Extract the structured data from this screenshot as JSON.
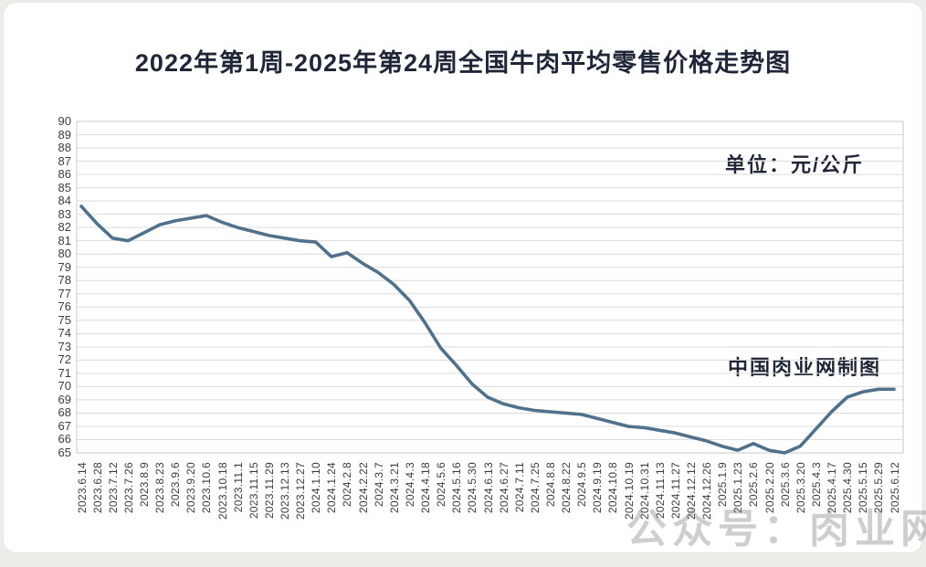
{
  "page": {
    "title": "2022年第1周-2025年第24周全国牛肉平均零售价格走势图",
    "unit_label": "单位：元/公斤",
    "credit_label": "中国肉业网制图",
    "watermark": "公众号：肉业网"
  },
  "colors": {
    "line": "#50718c",
    "grid": "#dcdcdc",
    "plot_border": "#c9c9c9",
    "title_text": "#1f2638",
    "axis_text": "#3c3c3c"
  },
  "chart_data": {
    "type": "line",
    "title": "2022年第1周-2025年第24周全国牛肉平均零售价格走势图",
    "unit": "元/公斤",
    "xlabel": "",
    "ylabel": "",
    "ylim": [
      65,
      90
    ],
    "ytick_step": 1,
    "grid": true,
    "legend": false,
    "categories": [
      "2023.6.14",
      "2023.6.28",
      "2023.7.12",
      "2023.7.26",
      "2023.8.9",
      "2023.8.23",
      "2023.9.6",
      "2023.9.20",
      "2023.10.6",
      "2023.10.18",
      "2023.11.1",
      "2023.11.15",
      "2023.11.29",
      "2023.12.13",
      "2023.12.27",
      "2024.1.10",
      "2024.1.24",
      "2024.2.8",
      "2024.2.22",
      "2024.3.7",
      "2024.3.21",
      "2024.4.3",
      "2024.4.18",
      "2024.5.6",
      "2024.5.16",
      "2024.5.30",
      "2024.6.13",
      "2024.6.27",
      "2024.7.11",
      "2024.7.25",
      "2024.8.8",
      "2024.8.22",
      "2024.9.5",
      "2024.9.19",
      "2024.10.8",
      "2024.10.19",
      "2024.10.31",
      "2024.11.13",
      "2024.11.27",
      "2024.12.12",
      "2024.12.26",
      "2025.1.9",
      "2025.1.23",
      "2025.2.6",
      "2025.2.20",
      "2025.3.6",
      "2025.3.20",
      "2025.4.3",
      "2025.4.17",
      "2025.4.30",
      "2025.5.15",
      "2025.5.29",
      "2025.6.12"
    ],
    "values": [
      83.6,
      82.3,
      81.2,
      81.0,
      81.6,
      82.2,
      82.5,
      82.7,
      82.9,
      82.4,
      82.0,
      81.7,
      81.4,
      81.2,
      81.0,
      80.9,
      79.8,
      80.1,
      79.3,
      78.6,
      77.7,
      76.5,
      74.8,
      72.9,
      71.6,
      70.2,
      69.2,
      68.7,
      68.4,
      68.2,
      68.1,
      68.0,
      67.9,
      67.6,
      67.3,
      67.0,
      66.9,
      66.7,
      66.5,
      66.2,
      65.9,
      65.5,
      65.2,
      65.7,
      65.2,
      65.0,
      65.5,
      66.8,
      68.1,
      69.2,
      69.6,
      69.8,
      69.8
    ]
  }
}
